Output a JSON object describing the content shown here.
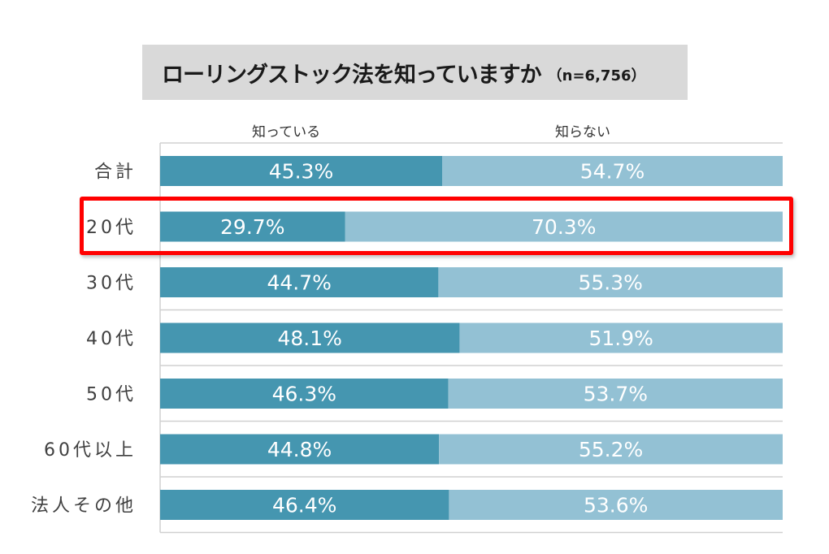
{
  "chart_title": {
    "main": "ローリングストック法を知っていますか",
    "sample": "（n=6,756）"
  },
  "legend": {
    "known": "知っている",
    "unknown": "知らない"
  },
  "colors": {
    "known": "#4596b0",
    "unknown": "#93c1d4",
    "grid": "#d0d0d0",
    "highlight": "#ff0000"
  },
  "highlighted_category": "20代",
  "chart_data": {
    "type": "bar",
    "orientation": "horizontal",
    "stacked": true,
    "percent": true,
    "title": "ローリングストック法を知っていますか（n=6,756）",
    "categories": [
      "合計",
      "20代",
      "30代",
      "40代",
      "50代",
      "60代以上",
      "法人その他"
    ],
    "series": [
      {
        "name": "知っている",
        "values": [
          45.3,
          29.7,
          44.7,
          48.1,
          46.3,
          44.8,
          46.4
        ],
        "labels": [
          "45.3%",
          "29.7%",
          "44.7%",
          "48.1%",
          "46.3%",
          "44.8%",
          "46.4%"
        ]
      },
      {
        "name": "知らない",
        "values": [
          54.7,
          70.3,
          55.3,
          51.9,
          53.7,
          55.2,
          53.6
        ],
        "labels": [
          "54.7%",
          "70.3%",
          "55.3%",
          "51.9%",
          "53.7%",
          "55.2%",
          "53.6%"
        ]
      }
    ],
    "xlim": [
      0,
      100
    ],
    "legend_position": "top",
    "grid": true
  }
}
